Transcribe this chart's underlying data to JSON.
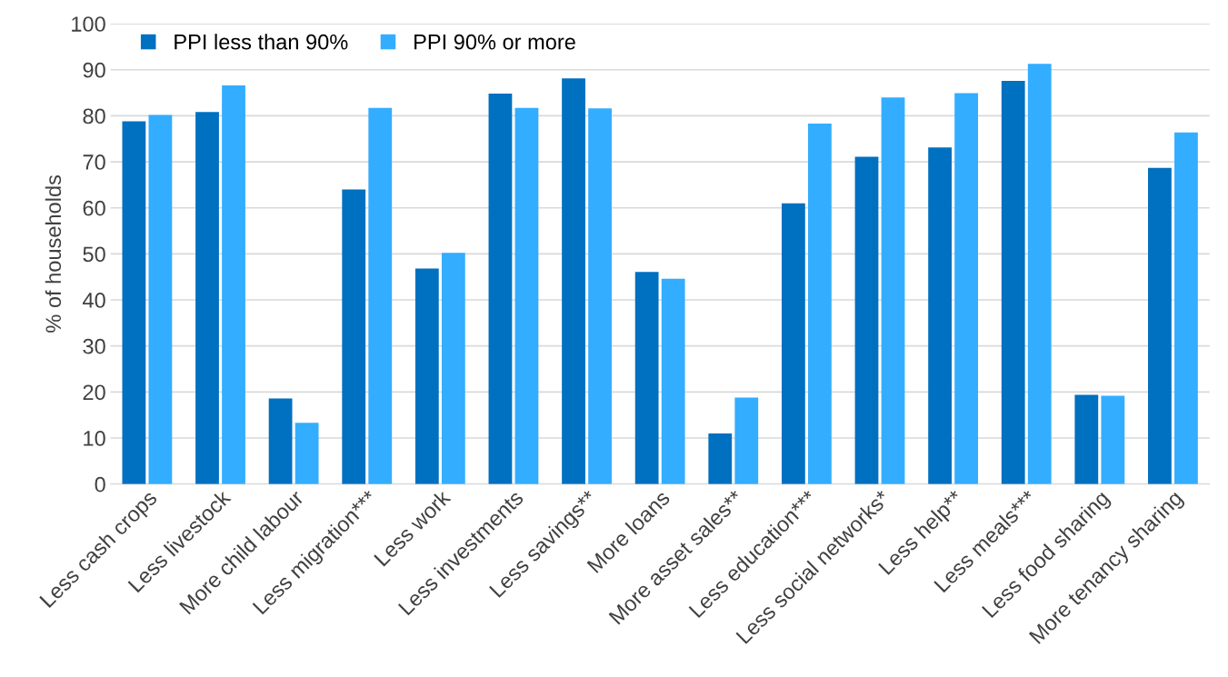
{
  "chart_data": {
    "type": "bar",
    "ylabel": "% of households",
    "categories": [
      "Less cash crops",
      "Less livestock",
      "More child labour",
      "Less migration***",
      "Less work",
      "Less investments",
      "Less savings**",
      "More loans",
      "More asset sales**",
      "Less education***",
      "Less social networks*",
      "Less help**",
      "Less meals***",
      "Less food sharing",
      "More tenancy sharing"
    ],
    "series": [
      {
        "name": "PPI less than 90%",
        "color": "#0070c0",
        "values": [
          78.8,
          80.8,
          18.6,
          64.0,
          46.8,
          84.8,
          88.1,
          46.1,
          11.0,
          61.0,
          71.1,
          73.1,
          87.6,
          19.4,
          68.7
        ]
      },
      {
        "name": "PPI 90% or more",
        "color": "#33adff",
        "values": [
          80.2,
          86.6,
          13.3,
          81.7,
          50.2,
          81.7,
          81.6,
          44.6,
          18.8,
          78.3,
          84.0,
          84.9,
          91.3,
          19.2,
          76.4
        ]
      }
    ],
    "ylim": [
      0,
      100
    ],
    "yticks": [
      0,
      10,
      20,
      30,
      40,
      50,
      60,
      70,
      80,
      90,
      100
    ],
    "grid": "y",
    "legend": "top left"
  }
}
